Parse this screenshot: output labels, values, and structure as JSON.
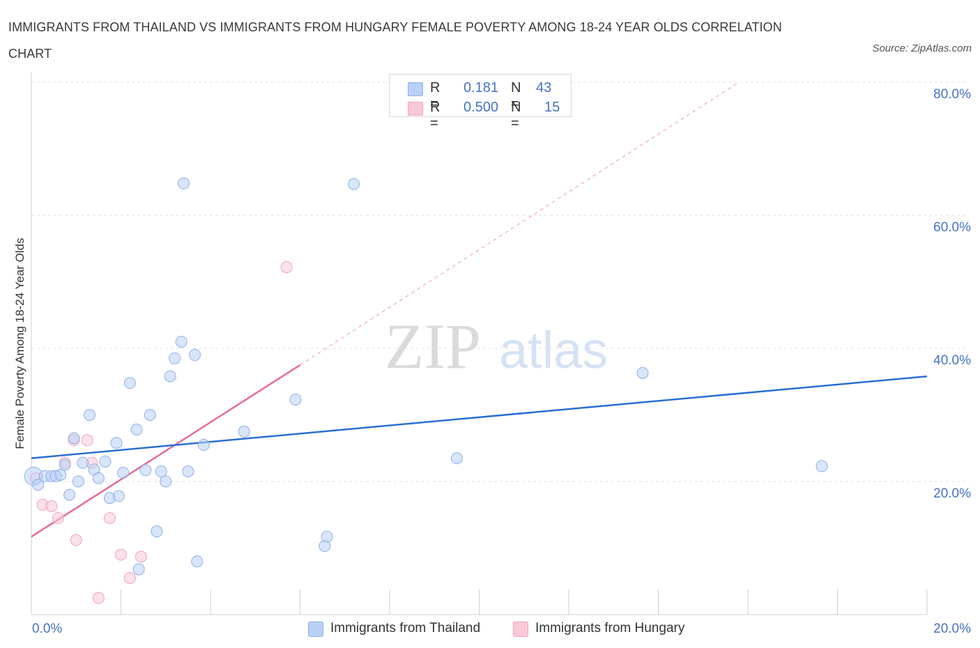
{
  "title": "IMMIGRANTS FROM THAILAND VS IMMIGRANTS FROM HUNGARY FEMALE POVERTY AMONG 18-24 YEAR OLDS CORRELATION CHART",
  "source": "Source: ZipAtlas.com",
  "watermark": {
    "zip": "ZIP",
    "atlas": "atlas"
  },
  "legend": {
    "rows": [
      {
        "r_label": "R =",
        "r_value": "0.181",
        "n_label": "N =",
        "n_value": "43"
      },
      {
        "r_label": "R =",
        "r_value": "0.500",
        "n_label": "N =",
        "n_value": "15"
      }
    ]
  },
  "bottom_legend": [
    "Immigrants from Thailand",
    "Immigrants from Hungary"
  ],
  "colors": {
    "thailand_fill": "#b8d0f5",
    "thailand_stroke": "#8db0e8",
    "thailand_line": "#2a6fd1",
    "hungary_fill": "#f8c8d6",
    "hungary_stroke": "#f0a4ba",
    "hungary_line": "#e86a96",
    "axis_label": "#4472c4",
    "grid": "#e2e2e2"
  },
  "chart_data": {
    "type": "scatter",
    "title": "IMMIGRANTS FROM THAILAND VS IMMIGRANTS FROM HUNGARY FEMALE POVERTY AMONG 18-24 YEAR OLDS CORRELATION CHART",
    "xlabel": "",
    "ylabel": "Female Poverty Among 18-24 Year Olds",
    "xlim": [
      0,
      20
    ],
    "ylim": [
      0,
      80
    ],
    "x_tick_labels": [
      "0.0%",
      "20.0%"
    ],
    "y_tick_labels": [
      {
        "value": 20,
        "label": "20.0%"
      },
      {
        "value": 40,
        "label": "40.0%"
      },
      {
        "value": 60,
        "label": "60.0%"
      },
      {
        "value": 80,
        "label": "80.0%"
      }
    ],
    "grid": true,
    "legend_position": "top-center",
    "series": [
      {
        "name": "Immigrants from Thailand",
        "R": 0.181,
        "N": 43,
        "trend": {
          "x0": 0,
          "y0": 23.5,
          "x1": 20,
          "y1": 35.8
        },
        "points": [
          [
            0.05,
            20.8
          ],
          [
            0.15,
            19.5
          ],
          [
            0.3,
            20.8
          ],
          [
            0.45,
            20.8
          ],
          [
            0.55,
            20.8
          ],
          [
            0.65,
            21.0
          ],
          [
            0.75,
            22.5
          ],
          [
            0.85,
            18.0
          ],
          [
            0.95,
            26.5
          ],
          [
            1.05,
            20.0
          ],
          [
            1.15,
            22.8
          ],
          [
            1.3,
            30.0
          ],
          [
            1.4,
            21.8
          ],
          [
            1.5,
            20.5
          ],
          [
            1.65,
            23.0
          ],
          [
            1.75,
            17.5
          ],
          [
            1.9,
            25.8
          ],
          [
            1.95,
            17.8
          ],
          [
            2.05,
            21.3
          ],
          [
            2.2,
            34.8
          ],
          [
            2.35,
            27.8
          ],
          [
            2.4,
            6.8
          ],
          [
            2.55,
            21.7
          ],
          [
            2.65,
            30.0
          ],
          [
            2.8,
            12.5
          ],
          [
            2.9,
            21.5
          ],
          [
            3.0,
            20.0
          ],
          [
            3.1,
            35.8
          ],
          [
            3.2,
            38.5
          ],
          [
            3.35,
            41.0
          ],
          [
            3.4,
            64.8
          ],
          [
            3.5,
            21.5
          ],
          [
            3.65,
            39.0
          ],
          [
            3.7,
            8.0
          ],
          [
            3.85,
            25.5
          ],
          [
            4.75,
            27.5
          ],
          [
            5.9,
            32.3
          ],
          [
            6.55,
            10.3
          ],
          [
            6.6,
            11.7
          ],
          [
            7.2,
            64.7
          ],
          [
            9.5,
            23.5
          ],
          [
            13.65,
            36.3
          ],
          [
            17.65,
            22.3
          ]
        ]
      },
      {
        "name": "Immigrants from Hungary",
        "R": 0.5,
        "N": 15,
        "trend": {
          "x0": 0,
          "y0": 11.7,
          "x1": 6.0,
          "y1": 37.5
        },
        "trend_extension": {
          "x0": 6.0,
          "y0": 37.5,
          "x1": 15.8,
          "y1": 80.0
        },
        "points": [
          [
            0.1,
            20.5
          ],
          [
            0.25,
            16.5
          ],
          [
            0.45,
            16.3
          ],
          [
            0.6,
            14.5
          ],
          [
            0.75,
            22.8
          ],
          [
            0.95,
            26.2
          ],
          [
            1.0,
            11.2
          ],
          [
            1.25,
            26.2
          ],
          [
            1.35,
            22.8
          ],
          [
            1.5,
            2.5
          ],
          [
            1.75,
            14.5
          ],
          [
            2.0,
            9.0
          ],
          [
            2.2,
            5.5
          ],
          [
            2.45,
            8.7
          ],
          [
            5.7,
            52.2
          ]
        ]
      }
    ]
  }
}
